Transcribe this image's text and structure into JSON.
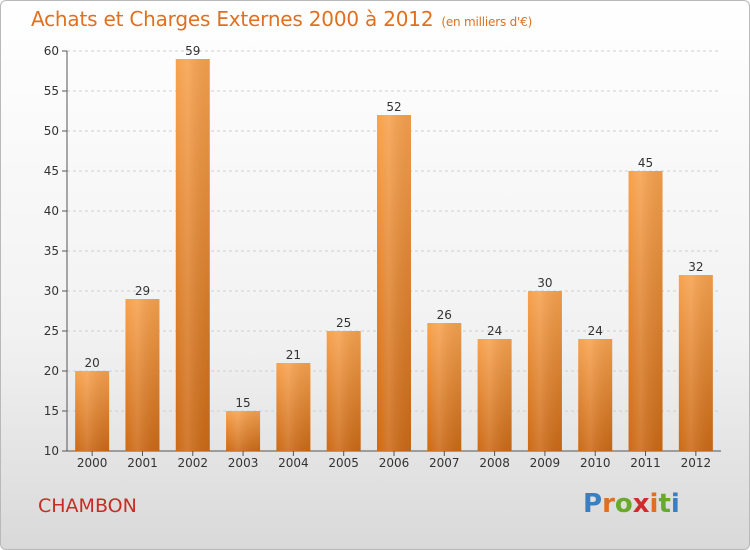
{
  "title": "Achats et Charges Externes 2000 à 2012",
  "subtitle": "(en milliers d'€)",
  "place": "CHAMBON",
  "logo": {
    "letters": [
      "P",
      "r",
      "o",
      "x",
      "i",
      "t",
      "i"
    ],
    "colors": [
      "#3a7fc2",
      "#e0701f",
      "#6aaa2a",
      "#d12b2b",
      "#e0701f",
      "#6aaa2a",
      "#3a7fc2"
    ]
  },
  "colors": {
    "bar_light": "#f7a24e",
    "bar_dark": "#cc6a16",
    "accent": "#e0701f"
  },
  "chart_data": {
    "type": "bar",
    "categories": [
      "2000",
      "2001",
      "2002",
      "2003",
      "2004",
      "2005",
      "2006",
      "2007",
      "2008",
      "2009",
      "2010",
      "2011",
      "2012"
    ],
    "values": [
      20,
      29,
      59,
      15,
      21,
      25,
      52,
      26,
      24,
      30,
      24,
      45,
      32
    ],
    "ylim": [
      10,
      60
    ],
    "yticks": [
      10,
      15,
      20,
      25,
      30,
      35,
      40,
      45,
      50,
      55,
      60
    ],
    "grid": true
  }
}
